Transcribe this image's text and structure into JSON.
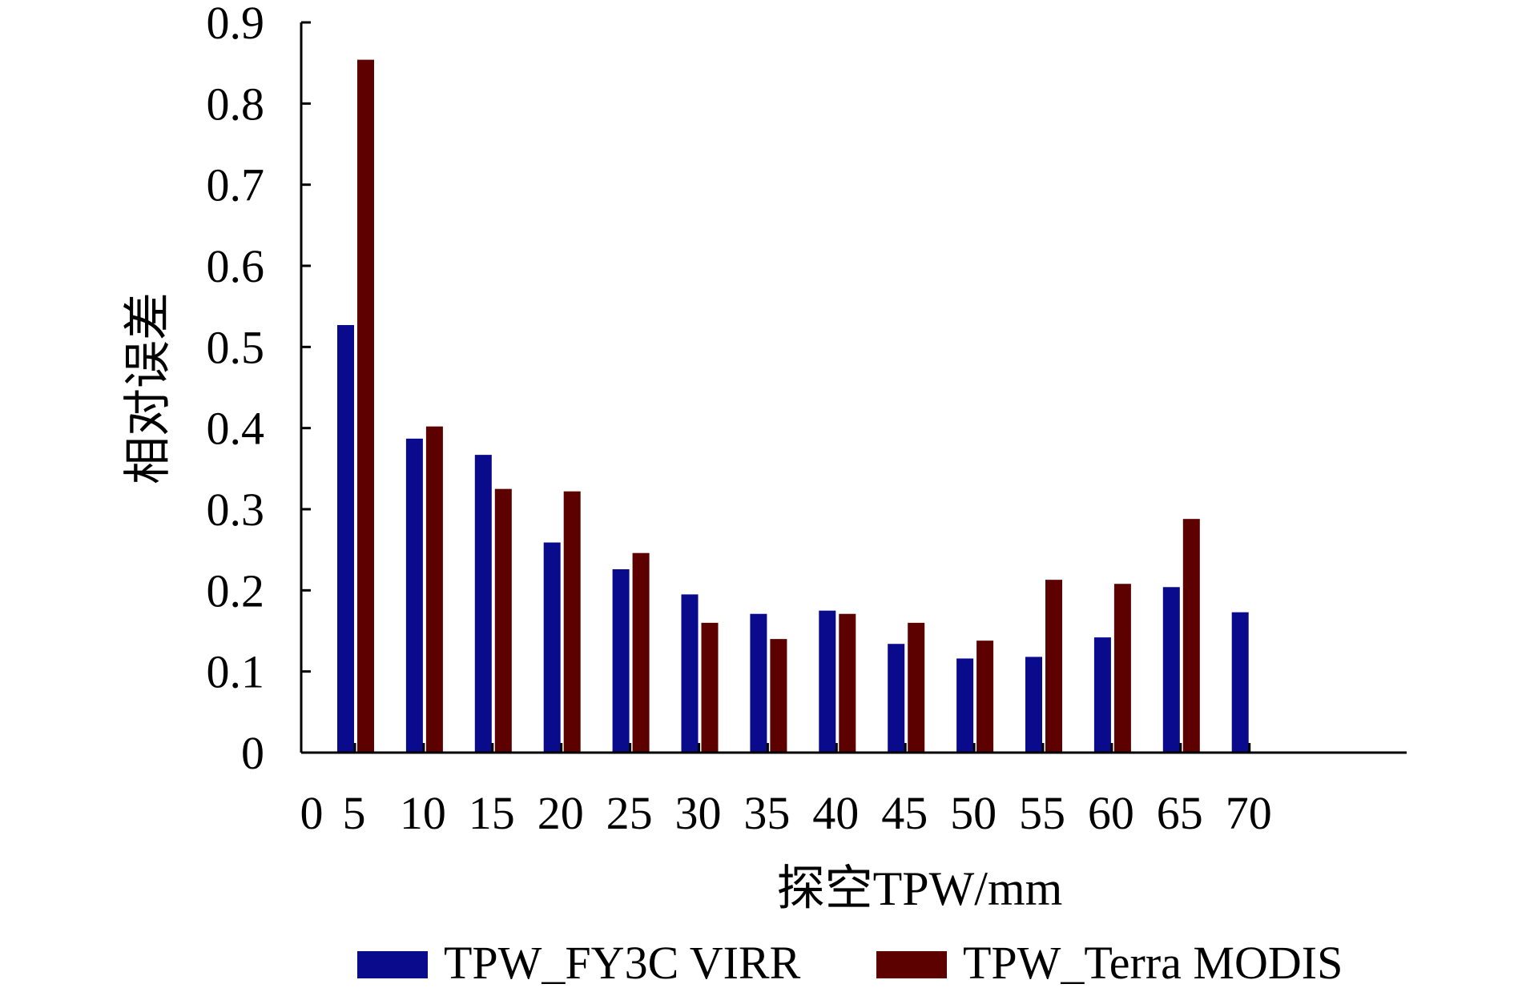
{
  "chart_data": {
    "type": "bar",
    "categories": [
      "5",
      "10",
      "15",
      "20",
      "25",
      "30",
      "35",
      "40",
      "45",
      "50",
      "55",
      "60",
      "65",
      "70"
    ],
    "x_tick_labels": [
      "0",
      "5",
      "10",
      "15",
      "20",
      "25",
      "30",
      "35",
      "40",
      "45",
      "50",
      "55",
      "60",
      "65",
      "70"
    ],
    "series": [
      {
        "name": "TPW_FY3C VIRR",
        "color": "#0a0a8c",
        "values": [
          0.527,
          0.387,
          0.367,
          0.259,
          0.226,
          0.195,
          0.171,
          0.175,
          0.134,
          0.116,
          0.118,
          0.142,
          0.204,
          0.173
        ]
      },
      {
        "name": "TPW_Terra MODIS",
        "color": "#5c0000",
        "values": [
          0.854,
          0.402,
          0.325,
          0.322,
          0.246,
          0.16,
          0.14,
          0.171,
          0.16,
          0.138,
          0.213,
          0.208,
          0.288,
          null
        ]
      }
    ],
    "xlabel": "探空TPW/mm",
    "ylabel": "相对误差",
    "ylim": [
      0,
      0.9
    ],
    "yticks": [
      "0",
      "0.1",
      "0.2",
      "0.3",
      "0.4",
      "0.5",
      "0.6",
      "0.7",
      "0.8",
      "0.9"
    ],
    "grid": false,
    "legend_position": "bottom"
  }
}
